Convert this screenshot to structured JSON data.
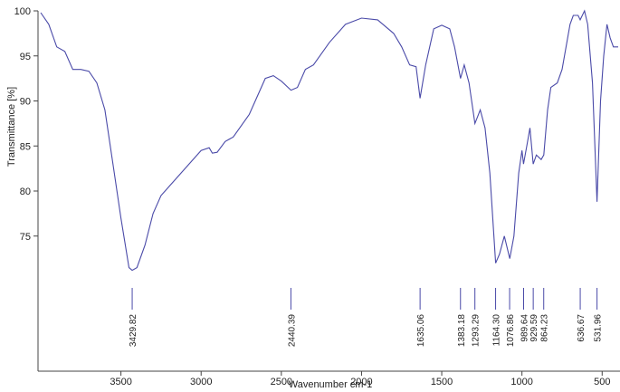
{
  "chart_data": {
    "type": "line",
    "x_label": "Wavenumber cm-1",
    "y_label": "Transmittance [%]",
    "color": "#4a4aa8",
    "xlim": [
      4000,
      400
    ],
    "ylim": [
      60,
      100
    ],
    "xticks": [
      3500,
      3000,
      2500,
      2000,
      1500,
      1000,
      500
    ],
    "yticks": [
      75,
      80,
      85,
      90,
      95,
      100
    ],
    "x": [
      4000,
      3950,
      3900,
      3850,
      3800,
      3750,
      3700,
      3650,
      3600,
      3550,
      3500,
      3450,
      3430,
      3400,
      3350,
      3300,
      3250,
      3200,
      3100,
      3000,
      2950,
      2930,
      2900,
      2850,
      2800,
      2700,
      2600,
      2550,
      2500,
      2440,
      2400,
      2350,
      2300,
      2200,
      2100,
      2000,
      1900,
      1800,
      1750,
      1700,
      1660,
      1635,
      1600,
      1550,
      1500,
      1450,
      1420,
      1383,
      1360,
      1330,
      1293,
      1260,
      1230,
      1200,
      1164,
      1140,
      1110,
      1076,
      1050,
      1020,
      1000,
      990,
      970,
      950,
      930,
      910,
      880,
      864,
      840,
      820,
      780,
      750,
      700,
      680,
      650,
      637,
      610,
      590,
      560,
      532,
      510,
      490,
      470,
      450,
      430,
      400
    ],
    "values": [
      99.8,
      98.5,
      96,
      95.5,
      93.5,
      93.5,
      93.3,
      92,
      89,
      83,
      77,
      71.5,
      71.2,
      71.5,
      74,
      77.5,
      79.5,
      80.5,
      82.5,
      84.5,
      84.8,
      84.2,
      84.3,
      85.5,
      86,
      88.5,
      92.5,
      92.8,
      92.2,
      91.2,
      91.5,
      93.5,
      94,
      96.5,
      98.5,
      99.2,
      99,
      97.5,
      96,
      94,
      93.8,
      90.3,
      94,
      98,
      98.4,
      98,
      96,
      92.5,
      94,
      92,
      87.5,
      89,
      87,
      82,
      72,
      73,
      75,
      72.5,
      75,
      82,
      84.5,
      83,
      85,
      87,
      83,
      84,
      83.5,
      84,
      89,
      91.5,
      92,
      93.5,
      98.5,
      99.5,
      99.5,
      99,
      100,
      98.5,
      92,
      78.8,
      90,
      95,
      98.5,
      97,
      96,
      96
    ],
    "peaks": [
      3429.82,
      2440.39,
      1635.06,
      1383.18,
      1293.29,
      {
        "value": 1164.3,
        "label": "1164.30"
      },
      1076.86,
      989.64,
      929.59,
      864.23,
      636.67,
      531.96
    ]
  }
}
